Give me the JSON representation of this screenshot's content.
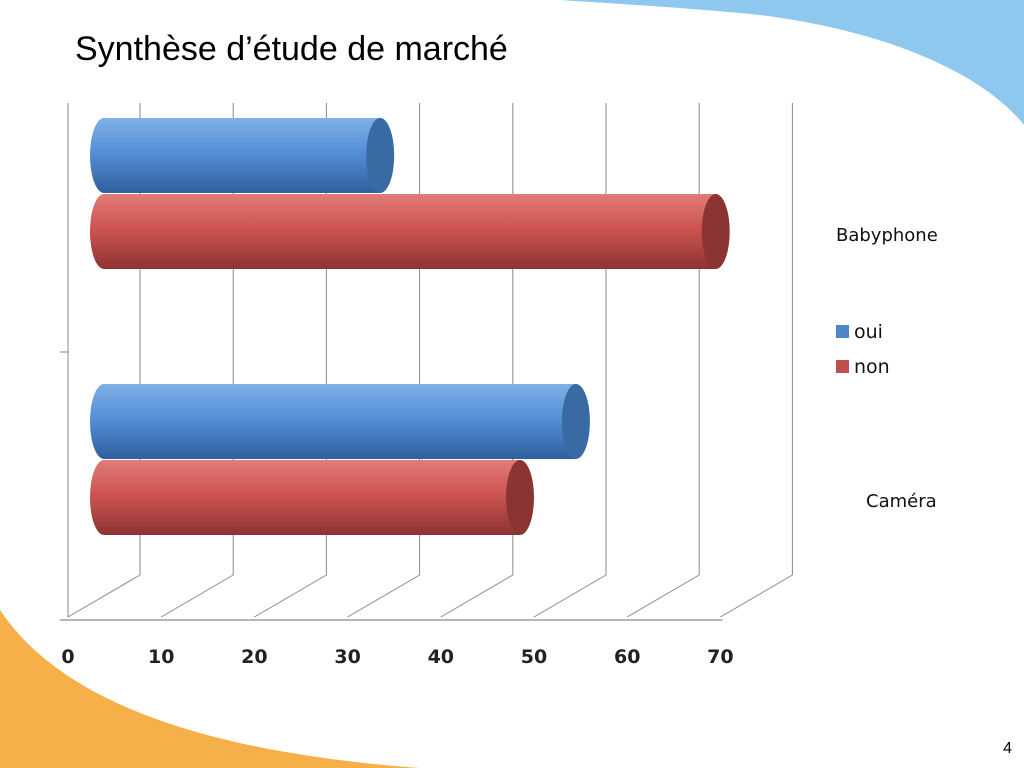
{
  "slide": {
    "title": "Synthèse d’étude de marché",
    "page_number": "4"
  },
  "colors": {
    "oui": "#4f86c9",
    "non": "#c0504d",
    "accent_top": "#8ec8ee",
    "accent_bottom": "#f6b04a"
  },
  "chart_data": {
    "type": "bar",
    "orientation": "horizontal",
    "style": "3d-cylinder",
    "categories": [
      "Babyphone",
      "Caméra"
    ],
    "series": [
      {
        "name": "oui",
        "values": [
          35,
          56
        ]
      },
      {
        "name": "non",
        "values": [
          71,
          50
        ]
      }
    ],
    "xticks": [
      "0",
      "10",
      "20",
      "30",
      "40",
      "50",
      "60",
      "70"
    ],
    "xlim": [
      0,
      70
    ],
    "grid": true,
    "legend": "right",
    "title": "",
    "xlabel": "",
    "ylabel": ""
  }
}
